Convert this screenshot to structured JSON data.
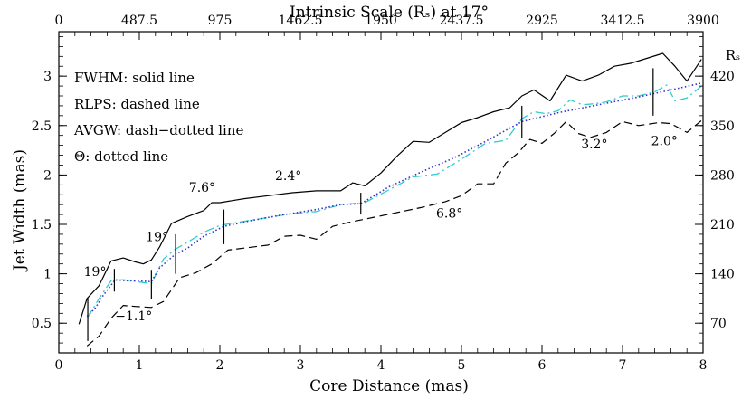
{
  "chart_data": {
    "type": "line",
    "title": "",
    "xlabel": "Core Distance (mas)",
    "ylabel": "Jet Width (mas)",
    "top_xlabel": "Intrinsic Scale (Rₛ) at 17°",
    "right_ylabel": "Rₛ",
    "xlim": [
      0,
      8
    ],
    "ylim": [
      0.2,
      3.45
    ],
    "x_ticks": [
      0,
      1,
      2,
      3,
      4,
      5,
      6,
      7,
      8
    ],
    "x_tick_labels": [
      "0",
      "1",
      "2",
      "3",
      "4",
      "5",
      "6",
      "7",
      "8"
    ],
    "y_ticks": [
      0.5,
      1,
      1.5,
      2,
      2.5,
      3
    ],
    "y_tick_labels": [
      "0.5",
      "1",
      "1.5",
      "2",
      "2.5",
      "3"
    ],
    "top_ticks": [
      0,
      1,
      2,
      3,
      4,
      5,
      6,
      7,
      8
    ],
    "top_tick_labels": [
      "0",
      "487.5",
      "975",
      "1462.5",
      "1950",
      "2437.5",
      "2925",
      "3412.5",
      "3900"
    ],
    "right_ticks": [
      0.5,
      1,
      1.5,
      2,
      2.5,
      3
    ],
    "right_tick_labels": [
      "70",
      "140",
      "210",
      "280",
      "350",
      "420"
    ],
    "legend": [
      "FWHM: solid line",
      "RLPS: dashed line",
      "AVGW: dash−dotted line",
      "Θ: dotted line"
    ],
    "series": [
      {
        "name": "FWHM",
        "style": "solid",
        "color": "#000000",
        "x": [
          0.25,
          0.35,
          0.5,
          0.65,
          0.8,
          0.95,
          1.05,
          1.15,
          1.25,
          1.4,
          1.6,
          1.8,
          1.9,
          2.0,
          2.3,
          2.6,
          2.9,
          3.2,
          3.5,
          3.65,
          3.8,
          4.0,
          4.2,
          4.4,
          4.6,
          4.8,
          5.0,
          5.2,
          5.4,
          5.6,
          5.75,
          5.9,
          6.1,
          6.3,
          6.5,
          6.7,
          6.9,
          7.1,
          7.3,
          7.5,
          7.65,
          7.8,
          7.98
        ],
        "y": [
          0.49,
          0.75,
          0.88,
          1.13,
          1.16,
          1.12,
          1.1,
          1.14,
          1.27,
          1.51,
          1.58,
          1.64,
          1.72,
          1.72,
          1.76,
          1.79,
          1.82,
          1.84,
          1.84,
          1.92,
          1.89,
          2.02,
          2.19,
          2.34,
          2.33,
          2.43,
          2.53,
          2.58,
          2.64,
          2.68,
          2.8,
          2.86,
          2.75,
          3.01,
          2.95,
          3.01,
          3.1,
          3.13,
          3.18,
          3.23,
          3.1,
          2.95,
          3.17
        ]
      },
      {
        "name": "RLPS",
        "style": "dashed",
        "color": "#000000",
        "x": [
          0.35,
          0.5,
          0.65,
          0.8,
          0.95,
          1.15,
          1.3,
          1.5,
          1.7,
          1.9,
          2.1,
          2.3,
          2.6,
          2.8,
          3.0,
          3.2,
          3.4,
          3.6,
          3.9,
          4.2,
          4.5,
          4.8,
          5.0,
          5.2,
          5.4,
          5.55,
          5.7,
          5.85,
          6.0,
          6.15,
          6.3,
          6.45,
          6.6,
          6.8,
          7.0,
          7.2,
          7.45,
          7.6,
          7.8,
          7.98
        ],
        "y": [
          0.27,
          0.37,
          0.55,
          0.68,
          0.67,
          0.66,
          0.72,
          0.96,
          1.01,
          1.1,
          1.24,
          1.26,
          1.29,
          1.38,
          1.39,
          1.35,
          1.48,
          1.52,
          1.57,
          1.62,
          1.67,
          1.73,
          1.79,
          1.91,
          1.91,
          2.12,
          2.22,
          2.36,
          2.32,
          2.42,
          2.54,
          2.42,
          2.38,
          2.43,
          2.54,
          2.5,
          2.53,
          2.52,
          2.43,
          2.55
        ]
      },
      {
        "name": "AVGW",
        "style": "dash-dot",
        "color": "#33cccc",
        "x": [
          0.35,
          0.5,
          0.65,
          0.8,
          1.15,
          1.3,
          1.45,
          1.6,
          1.8,
          2.0,
          2.3,
          2.6,
          2.9,
          3.2,
          3.5,
          3.8,
          4.1,
          4.4,
          4.7,
          5.0,
          5.3,
          5.55,
          5.75,
          5.9,
          6.05,
          6.2,
          6.35,
          6.5,
          6.65,
          6.8,
          7.0,
          7.2,
          7.4,
          7.55,
          7.65,
          7.8,
          7.98
        ],
        "y": [
          0.55,
          0.75,
          0.93,
          0.94,
          0.9,
          1.15,
          1.25,
          1.32,
          1.42,
          1.49,
          1.53,
          1.57,
          1.61,
          1.63,
          1.7,
          1.72,
          1.85,
          1.98,
          2.01,
          2.16,
          2.32,
          2.35,
          2.57,
          2.64,
          2.62,
          2.65,
          2.76,
          2.71,
          2.72,
          2.74,
          2.8,
          2.8,
          2.84,
          2.91,
          2.75,
          2.78,
          2.9
        ]
      },
      {
        "name": "Θ",
        "style": "dotted",
        "color": "#3333cc",
        "x": [
          0.35,
          0.45,
          0.55,
          0.7,
          0.85,
          1.0,
          1.15,
          1.25,
          1.45,
          1.6,
          1.8,
          2.05,
          2.4,
          2.8,
          3.2,
          3.5,
          3.75,
          4.1,
          4.5,
          4.9,
          5.3,
          5.75,
          6.2,
          6.7,
          7.2,
          7.6,
          7.98
        ],
        "y": [
          0.57,
          0.65,
          0.78,
          0.94,
          0.93,
          0.93,
          0.92,
          1.06,
          1.2,
          1.26,
          1.38,
          1.48,
          1.54,
          1.6,
          1.65,
          1.7,
          1.71,
          1.88,
          2.03,
          2.17,
          2.34,
          2.54,
          2.63,
          2.71,
          2.79,
          2.86,
          2.93
        ]
      }
    ],
    "error_bars": [
      {
        "x": 0.36,
        "y_low": 0.32,
        "y_high": 0.76
      },
      {
        "x": 0.69,
        "y_low": 0.82,
        "y_high": 1.05
      },
      {
        "x": 1.15,
        "y_low": 0.74,
        "y_high": 1.04
      },
      {
        "x": 1.45,
        "y_low": 1.0,
        "y_high": 1.4
      },
      {
        "x": 2.05,
        "y_low": 1.3,
        "y_high": 1.65
      },
      {
        "x": 3.75,
        "y_low": 1.6,
        "y_high": 1.82
      },
      {
        "x": 5.75,
        "y_low": 2.37,
        "y_high": 2.7
      },
      {
        "x": 7.38,
        "y_low": 2.6,
        "y_high": 3.08
      }
    ],
    "annotations": [
      {
        "text": "19°",
        "x": 0.45,
        "y": 0.98
      },
      {
        "text": "−1.1°",
        "x": 0.93,
        "y": 0.53
      },
      {
        "text": "19°",
        "x": 1.22,
        "y": 1.33
      },
      {
        "text": "7.6°",
        "x": 1.78,
        "y": 1.83
      },
      {
        "text": "2.4°",
        "x": 2.85,
        "y": 1.95
      },
      {
        "text": "6.8°",
        "x": 4.85,
        "y": 1.57
      },
      {
        "text": "3.2°",
        "x": 6.65,
        "y": 2.27
      },
      {
        "text": "2.0°",
        "x": 7.52,
        "y": 2.3
      }
    ]
  }
}
